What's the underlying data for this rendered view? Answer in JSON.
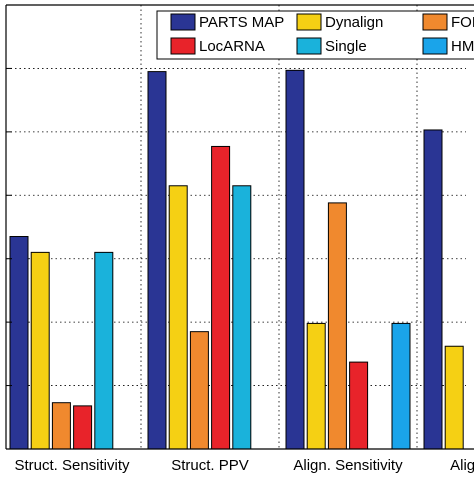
{
  "chart_data": {
    "type": "bar",
    "title": "",
    "xlabel": "",
    "ylabel": "",
    "categories": [
      "Struct. Sensitivity",
      "Struct. PPV",
      "Align. Sensitivity",
      "Align. PPV"
    ],
    "series": [
      {
        "name": "PARTS MAP",
        "color": "#2a3594",
        "values": [
          0.335,
          0.595,
          0.597,
          0.503
        ]
      },
      {
        "name": "Dynalign",
        "color": "#f5d014",
        "values": [
          0.31,
          0.415,
          0.198,
          0.162
        ]
      },
      {
        "name": "FOLDALIGN",
        "color": "#f0892e",
        "values": [
          0.073,
          0.185,
          0.388,
          null
        ]
      },
      {
        "name": "LocARNA",
        "color": "#e8232a",
        "values": [
          0.068,
          0.477,
          0.137,
          null
        ]
      },
      {
        "name": "Single",
        "color": "#1ab2db",
        "values": [
          0.31,
          0.415,
          null,
          null
        ]
      },
      {
        "name": "HMMs",
        "color": "#1aa4ea",
        "values": [
          null,
          null,
          0.198,
          null
        ]
      }
    ],
    "legend_labels_visible": [
      "PARTS MAP",
      "Dynalign",
      "FOL",
      "LocARNA",
      "Single",
      "HMM"
    ],
    "ylim": [
      0,
      0.7
    ],
    "grid": true,
    "legend_position": "top-right"
  }
}
